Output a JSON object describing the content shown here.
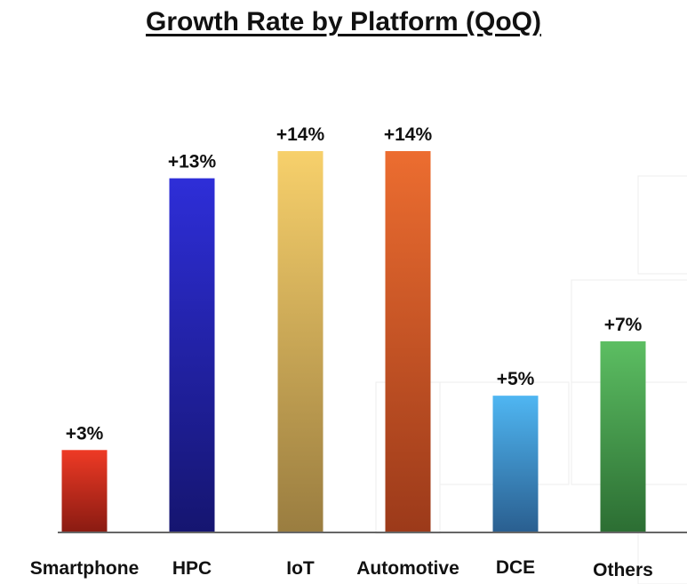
{
  "chart_data": {
    "type": "bar",
    "title": "Growth Rate by Platform (QoQ)",
    "categories": [
      "Smartphone",
      "HPC",
      "IoT",
      "Automotive",
      "DCE",
      "Others"
    ],
    "values": [
      3,
      13,
      14,
      14,
      5,
      7
    ],
    "data_labels": [
      "+3%",
      "+13%",
      "+14%",
      "+14%",
      "+5%",
      "+7%"
    ],
    "value_unit": "%",
    "ylim": [
      0,
      14
    ],
    "grid": false,
    "legend": "none",
    "colors": [
      [
        "#ee3a25",
        "#8a1b12"
      ],
      [
        "#2e2ed8",
        "#151570"
      ],
      [
        "#f7d06b",
        "#9a7d40"
      ],
      [
        "#ec6d30",
        "#9c3a1a"
      ],
      [
        "#4fb6f2",
        "#2a5f90"
      ],
      [
        "#5cbe62",
        "#2c6e33"
      ]
    ]
  }
}
